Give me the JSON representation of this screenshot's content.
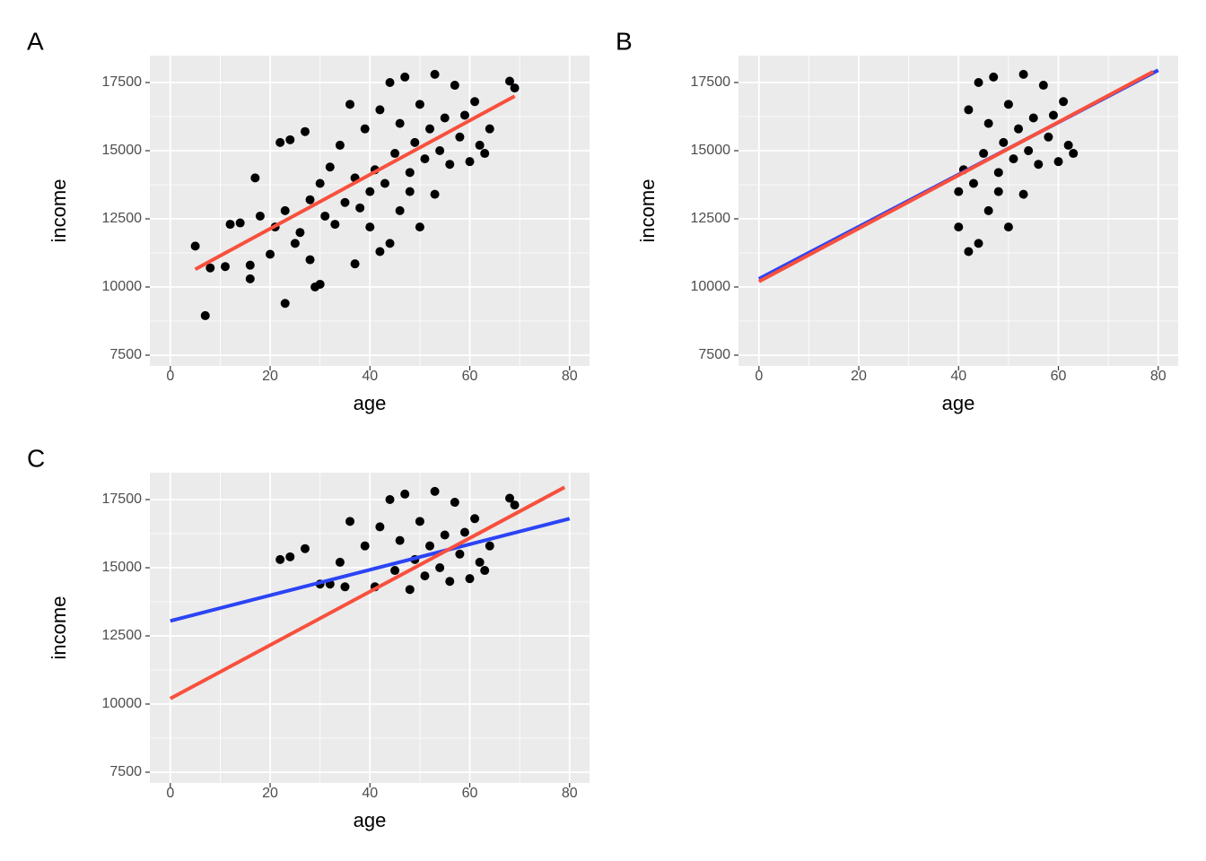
{
  "chart_data": [
    {
      "type": "scatter",
      "label": "A",
      "xlabel": "age",
      "ylabel": "income",
      "xlim": [
        -4.1,
        84
      ],
      "ylim": [
        7105,
        18487
      ],
      "xticks": [
        0,
        20,
        40,
        60,
        80
      ],
      "yticks": [
        7500,
        10000,
        12500,
        15000,
        17500
      ],
      "grid": true,
      "color": "#000000",
      "x": [
        5,
        7,
        8,
        11,
        12,
        14,
        16,
        16,
        17,
        18,
        20,
        21,
        22,
        23,
        23,
        24,
        25,
        26,
        27,
        28,
        28,
        29,
        30,
        30,
        31,
        32,
        33,
        34,
        35,
        36,
        37,
        37,
        38,
        39,
        40,
        40,
        41,
        42,
        42,
        43,
        44,
        44,
        45,
        46,
        46,
        47,
        48,
        48,
        49,
        50,
        50,
        51,
        52,
        53,
        53,
        54,
        55,
        56,
        57,
        58,
        59,
        60,
        61,
        62,
        63,
        64,
        68,
        69
      ],
      "y": [
        11500,
        8950,
        10700,
        10750,
        12300,
        12350,
        10300,
        10800,
        14000,
        12600,
        11200,
        12200,
        15300,
        9400,
        12800,
        15400,
        11600,
        12000,
        15700,
        11000,
        13200,
        10000,
        10100,
        13800,
        12600,
        14400,
        12300,
        15200,
        13100,
        16700,
        10850,
        14000,
        12900,
        15800,
        13500,
        12200,
        14300,
        16500,
        11300,
        13800,
        17500,
        11600,
        14900,
        12800,
        16000,
        17700,
        14200,
        13500,
        15300,
        16700,
        12200,
        14700,
        15800,
        17800,
        13400,
        15000,
        16200,
        14500,
        17400,
        15500,
        16300,
        14600,
        16800,
        15200,
        14900,
        15800,
        17550,
        17300
      ],
      "lines": [
        {
          "color": "#f8503d",
          "x": [
            5,
            69
          ],
          "y": [
            10650,
            17000
          ]
        }
      ]
    },
    {
      "type": "scatter",
      "label": "B",
      "xlabel": "age",
      "ylabel": "income",
      "xlim": [
        -4.1,
        84
      ],
      "ylim": [
        7105,
        18487
      ],
      "xticks": [
        0,
        20,
        40,
        60,
        80
      ],
      "yticks": [
        7500,
        10000,
        12500,
        15000,
        17500
      ],
      "grid": true,
      "color": "#000000",
      "x": [
        40,
        40,
        41,
        42,
        42,
        43,
        44,
        44,
        45,
        46,
        46,
        47,
        48,
        48,
        49,
        50,
        50,
        51,
        52,
        53,
        53,
        54,
        55,
        56,
        57,
        58,
        59,
        60,
        61,
        62,
        63
      ],
      "y": [
        13500,
        12200,
        14300,
        16500,
        11300,
        13800,
        17500,
        11600,
        14900,
        12800,
        16000,
        17700,
        14200,
        13500,
        15300,
        16700,
        12200,
        14700,
        15800,
        17800,
        13400,
        15000,
        16200,
        14500,
        17400,
        15500,
        16300,
        14600,
        16800,
        15200,
        14900
      ],
      "lines": [
        {
          "color": "#2b44f5",
          "x": [
            0,
            80
          ],
          "y": [
            10300,
            17950
          ]
        },
        {
          "color": "#f8503d",
          "x": [
            0,
            79
          ],
          "y": [
            10200,
            17900
          ]
        }
      ]
    },
    {
      "type": "scatter",
      "label": "C",
      "xlabel": "age",
      "ylabel": "income",
      "xlim": [
        -4.1,
        84
      ],
      "ylim": [
        7105,
        18487
      ],
      "xticks": [
        0,
        20,
        40,
        60,
        80
      ],
      "yticks": [
        7500,
        10000,
        12500,
        15000,
        17500
      ],
      "grid": true,
      "color": "#000000",
      "x": [
        22,
        24,
        27,
        30,
        32,
        34,
        35,
        36,
        39,
        41,
        42,
        44,
        45,
        46,
        47,
        48,
        49,
        50,
        51,
        52,
        53,
        54,
        55,
        56,
        57,
        58,
        59,
        60,
        61,
        62,
        63,
        64,
        68,
        69
      ],
      "y": [
        15300,
        15400,
        15700,
        14400,
        14400,
        15200,
        14300,
        16700,
        15800,
        14300,
        16500,
        17500,
        14900,
        16000,
        17700,
        14200,
        15300,
        16700,
        14700,
        15800,
        17800,
        15000,
        16200,
        14500,
        17400,
        15500,
        16300,
        14600,
        16800,
        15200,
        14900,
        15800,
        17550,
        17300
      ],
      "lines": [
        {
          "color": "#2b44f5",
          "x": [
            0,
            80
          ],
          "y": [
            13050,
            16800
          ]
        },
        {
          "color": "#f8503d",
          "x": [
            0,
            79
          ],
          "y": [
            10200,
            17950
          ]
        }
      ]
    }
  ]
}
